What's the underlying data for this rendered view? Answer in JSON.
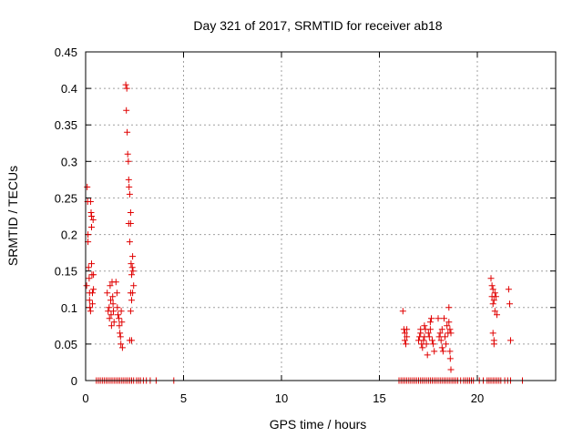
{
  "chart_data": {
    "type": "scatter",
    "title": "Day 321 of 2017, SRMTID for receiver ab18",
    "xlabel": "GPS time / hours",
    "ylabel": "SRMTID / TECUs",
    "xlim": [
      0,
      24
    ],
    "ylim": [
      0,
      0.45
    ],
    "grid": true,
    "marker": "+",
    "color": "#e00000",
    "xticks": [
      0,
      5,
      10,
      15,
      20
    ],
    "xtick_labels": [
      "0",
      "5",
      "10",
      "15",
      "20"
    ],
    "yticks": [
      0,
      0.05,
      0.1,
      0.15,
      0.2,
      0.25,
      0.3,
      0.35,
      0.4,
      0.45
    ],
    "ytick_labels": [
      "0",
      "0.05",
      "0.1",
      "0.15",
      "0.2",
      "0.25",
      "0.3",
      "0.35",
      "0.4",
      "0.45"
    ],
    "series": [
      {
        "name": "SRMTID",
        "points": [
          [
            0.05,
            0.13
          ],
          [
            0.08,
            0.265
          ],
          [
            0.1,
            0.245
          ],
          [
            0.12,
            0.2
          ],
          [
            0.12,
            0.19
          ],
          [
            0.15,
            0.155
          ],
          [
            0.18,
            0.14
          ],
          [
            0.2,
            0.12
          ],
          [
            0.2,
            0.11
          ],
          [
            0.22,
            0.1
          ],
          [
            0.25,
            0.095
          ],
          [
            0.25,
            0.245
          ],
          [
            0.28,
            0.23
          ],
          [
            0.3,
            0.225
          ],
          [
            0.3,
            0.21
          ],
          [
            0.3,
            0.16
          ],
          [
            0.32,
            0.145
          ],
          [
            0.35,
            0.12
          ],
          [
            0.35,
            0.105
          ],
          [
            0.38,
            0.22
          ],
          [
            0.4,
            0.145
          ],
          [
            0.4,
            0.125
          ],
          [
            1.1,
            0.12
          ],
          [
            1.15,
            0.095
          ],
          [
            1.2,
            0.1
          ],
          [
            1.22,
            0.085
          ],
          [
            1.25,
            0.13
          ],
          [
            1.28,
            0.11
          ],
          [
            1.3,
            0.09
          ],
          [
            1.32,
            0.075
          ],
          [
            1.35,
            0.135
          ],
          [
            1.38,
            0.115
          ],
          [
            1.4,
            0.105
          ],
          [
            1.42,
            0.095
          ],
          [
            1.45,
            0.08
          ],
          [
            1.55,
            0.135
          ],
          [
            1.6,
            0.12
          ],
          [
            1.62,
            0.1
          ],
          [
            1.65,
            0.09
          ],
          [
            1.7,
            0.085
          ],
          [
            1.72,
            0.075
          ],
          [
            1.75,
            0.065
          ],
          [
            1.78,
            0.06
          ],
          [
            1.8,
            0.05
          ],
          [
            1.82,
            0.095
          ],
          [
            1.85,
            0.08
          ],
          [
            1.88,
            0.045
          ],
          [
            2.05,
            0.405
          ],
          [
            2.08,
            0.37
          ],
          [
            2.1,
            0.4
          ],
          [
            2.12,
            0.34
          ],
          [
            2.15,
            0.31
          ],
          [
            2.18,
            0.3
          ],
          [
            2.2,
            0.275
          ],
          [
            2.22,
            0.265
          ],
          [
            2.25,
            0.255
          ],
          [
            2.2,
            0.215
          ],
          [
            2.25,
            0.19
          ],
          [
            2.3,
            0.23
          ],
          [
            2.3,
            0.215
          ],
          [
            2.32,
            0.16
          ],
          [
            2.35,
            0.145
          ],
          [
            2.38,
            0.155
          ],
          [
            2.4,
            0.17
          ],
          [
            2.42,
            0.15
          ],
          [
            2.45,
            0.13
          ],
          [
            2.3,
            0.12
          ],
          [
            2.35,
            0.11
          ],
          [
            2.4,
            0.12
          ],
          [
            2.3,
            0.095
          ],
          [
            2.25,
            0.055
          ],
          [
            2.35,
            0.055
          ],
          [
            16.2,
            0.095
          ],
          [
            16.25,
            0.07
          ],
          [
            16.3,
            0.065
          ],
          [
            16.3,
            0.055
          ],
          [
            16.35,
            0.05
          ],
          [
            16.4,
            0.06
          ],
          [
            16.4,
            0.07
          ],
          [
            17.0,
            0.055
          ],
          [
            17.05,
            0.06
          ],
          [
            17.1,
            0.07
          ],
          [
            17.1,
            0.065
          ],
          [
            17.15,
            0.05
          ],
          [
            17.2,
            0.045
          ],
          [
            17.25,
            0.055
          ],
          [
            17.3,
            0.075
          ],
          [
            17.3,
            0.06
          ],
          [
            17.35,
            0.07
          ],
          [
            17.4,
            0.05
          ],
          [
            17.45,
            0.035
          ],
          [
            17.5,
            0.065
          ],
          [
            17.55,
            0.06
          ],
          [
            17.6,
            0.08
          ],
          [
            17.6,
            0.07
          ],
          [
            17.65,
            0.085
          ],
          [
            17.7,
            0.055
          ],
          [
            17.75,
            0.05
          ],
          [
            17.8,
            0.04
          ],
          [
            18.0,
            0.085
          ],
          [
            18.05,
            0.06
          ],
          [
            18.1,
            0.065
          ],
          [
            18.15,
            0.055
          ],
          [
            18.2,
            0.07
          ],
          [
            18.2,
            0.045
          ],
          [
            18.25,
            0.04
          ],
          [
            18.3,
            0.085
          ],
          [
            18.35,
            0.06
          ],
          [
            18.4,
            0.05
          ],
          [
            18.45,
            0.075
          ],
          [
            18.5,
            0.065
          ],
          [
            18.55,
            0.08
          ],
          [
            18.55,
            0.1
          ],
          [
            18.6,
            0.07
          ],
          [
            18.6,
            0.04
          ],
          [
            18.62,
            0.03
          ],
          [
            18.65,
            0.015
          ],
          [
            18.65,
            0.065
          ],
          [
            20.7,
            0.14
          ],
          [
            20.75,
            0.13
          ],
          [
            20.75,
            0.115
          ],
          [
            20.8,
            0.125
          ],
          [
            20.8,
            0.105
          ],
          [
            20.85,
            0.11
          ],
          [
            20.9,
            0.12
          ],
          [
            20.9,
            0.095
          ],
          [
            20.95,
            0.115
          ],
          [
            21.0,
            0.09
          ],
          [
            20.8,
            0.065
          ],
          [
            20.85,
            0.055
          ],
          [
            20.85,
            0.05
          ],
          [
            21.6,
            0.125
          ],
          [
            21.65,
            0.105
          ],
          [
            21.7,
            0.055
          ],
          [
            0.55,
            0
          ],
          [
            0.65,
            0
          ],
          [
            0.75,
            0
          ],
          [
            0.85,
            0
          ],
          [
            0.95,
            0
          ],
          [
            1.05,
            0
          ],
          [
            1.15,
            0
          ],
          [
            1.25,
            0
          ],
          [
            1.35,
            0
          ],
          [
            1.45,
            0
          ],
          [
            1.55,
            0
          ],
          [
            1.65,
            0
          ],
          [
            1.75,
            0
          ],
          [
            1.85,
            0
          ],
          [
            1.95,
            0
          ],
          [
            2.05,
            0
          ],
          [
            2.15,
            0
          ],
          [
            2.25,
            0
          ],
          [
            2.35,
            0
          ],
          [
            2.45,
            0
          ],
          [
            2.6,
            0
          ],
          [
            2.7,
            0
          ],
          [
            2.8,
            0
          ],
          [
            2.95,
            0
          ],
          [
            3.1,
            0
          ],
          [
            3.3,
            0
          ],
          [
            3.6,
            0
          ],
          [
            4.5,
            0
          ],
          [
            16.0,
            0
          ],
          [
            16.1,
            0
          ],
          [
            16.2,
            0
          ],
          [
            16.3,
            0
          ],
          [
            16.4,
            0
          ],
          [
            16.5,
            0
          ],
          [
            16.6,
            0
          ],
          [
            16.7,
            0
          ],
          [
            16.8,
            0
          ],
          [
            16.9,
            0
          ],
          [
            17.0,
            0
          ],
          [
            17.1,
            0
          ],
          [
            17.2,
            0
          ],
          [
            17.3,
            0
          ],
          [
            17.4,
            0
          ],
          [
            17.5,
            0
          ],
          [
            17.6,
            0
          ],
          [
            17.7,
            0
          ],
          [
            17.8,
            0
          ],
          [
            17.9,
            0
          ],
          [
            18.0,
            0
          ],
          [
            18.1,
            0
          ],
          [
            18.2,
            0
          ],
          [
            18.3,
            0
          ],
          [
            18.4,
            0
          ],
          [
            18.5,
            0
          ],
          [
            18.6,
            0
          ],
          [
            18.7,
            0
          ],
          [
            18.8,
            0
          ],
          [
            18.9,
            0
          ],
          [
            19.0,
            0
          ],
          [
            19.15,
            0
          ],
          [
            19.3,
            0
          ],
          [
            19.4,
            0
          ],
          [
            19.5,
            0
          ],
          [
            19.6,
            0
          ],
          [
            19.7,
            0
          ],
          [
            19.8,
            0
          ],
          [
            20.1,
            0
          ],
          [
            20.3,
            0
          ],
          [
            20.5,
            0
          ],
          [
            20.6,
            0
          ],
          [
            20.7,
            0
          ],
          [
            20.8,
            0
          ],
          [
            20.9,
            0
          ],
          [
            21.0,
            0
          ],
          [
            21.1,
            0
          ],
          [
            21.2,
            0
          ],
          [
            21.4,
            0
          ],
          [
            21.55,
            0
          ],
          [
            21.7,
            0
          ],
          [
            22.3,
            0
          ]
        ]
      }
    ]
  }
}
